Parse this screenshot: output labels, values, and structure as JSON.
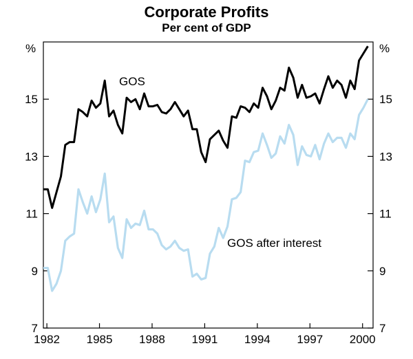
{
  "chart_data": {
    "type": "line",
    "title": "Corporate Profits",
    "subtitle": "Per cent of GDP",
    "ylabel_left": "%",
    "ylabel_right": "%",
    "ylim": [
      7,
      17
    ],
    "yticks": [
      7,
      9,
      11,
      13,
      15
    ],
    "ytick_labels": [
      "7",
      "9",
      "11",
      "13",
      "15"
    ],
    "xlim": [
      1981.8,
      2000.6
    ],
    "xticks": [
      1982,
      1985,
      1988,
      1991,
      1994,
      1997,
      2000
    ],
    "xtick_labels": [
      "1982",
      "1985",
      "1988",
      "1991",
      "1994",
      "1997",
      "2000"
    ],
    "grid": false,
    "annotations": [
      {
        "text": "GOS",
        "series": "GOS"
      },
      {
        "text": "GOS after interest",
        "series": "GOS after interest"
      }
    ],
    "series": [
      {
        "name": "GOS",
        "color": "#000000",
        "x": [
          1981.8,
          1982.05,
          1982.3,
          1982.55,
          1982.8,
          1983.05,
          1983.3,
          1983.55,
          1983.8,
          1984.05,
          1984.3,
          1984.55,
          1984.8,
          1985.05,
          1985.3,
          1985.55,
          1985.8,
          1986.05,
          1986.3,
          1986.55,
          1986.8,
          1987.05,
          1987.3,
          1987.55,
          1987.8,
          1988.05,
          1988.3,
          1988.55,
          1988.8,
          1989.05,
          1989.3,
          1989.55,
          1989.8,
          1990.05,
          1990.3,
          1990.55,
          1990.8,
          1991.05,
          1991.3,
          1991.55,
          1991.8,
          1992.05,
          1992.3,
          1992.55,
          1992.8,
          1993.05,
          1993.3,
          1993.55,
          1993.8,
          1994.05,
          1994.3,
          1994.55,
          1994.8,
          1995.05,
          1995.3,
          1995.55,
          1995.8,
          1996.05,
          1996.3,
          1996.55,
          1996.8,
          1997.05,
          1997.3,
          1997.55,
          1997.8,
          1998.05,
          1998.3,
          1998.55,
          1998.8,
          1999.05,
          1999.3,
          1999.55,
          1999.8,
          2000.05,
          2000.3
        ],
        "values": [
          11.85,
          11.85,
          11.2,
          11.75,
          12.3,
          13.4,
          13.5,
          13.5,
          14.65,
          14.55,
          14.4,
          14.95,
          14.7,
          14.85,
          15.65,
          14.4,
          14.6,
          14.1,
          13.8,
          15.05,
          14.9,
          15.0,
          14.65,
          15.2,
          14.75,
          14.75,
          14.8,
          14.55,
          14.5,
          14.65,
          14.9,
          14.65,
          14.4,
          14.6,
          13.95,
          13.95,
          13.15,
          12.8,
          13.6,
          13.75,
          13.9,
          13.55,
          13.3,
          14.4,
          14.35,
          14.75,
          14.7,
          14.55,
          14.85,
          14.7,
          15.4,
          15.1,
          14.65,
          14.95,
          15.4,
          15.3,
          16.1,
          15.75,
          15.05,
          15.5,
          15.05,
          15.1,
          15.2,
          14.85,
          15.35,
          15.8,
          15.4,
          15.65,
          15.5,
          15.05,
          15.65,
          15.35,
          16.35,
          16.6,
          16.85
        ]
      },
      {
        "name": "GOS after interest",
        "color": "#b8dcf0",
        "x": [
          1981.8,
          1982.05,
          1982.3,
          1982.55,
          1982.8,
          1983.05,
          1983.3,
          1983.55,
          1983.8,
          1984.05,
          1984.3,
          1984.55,
          1984.8,
          1985.05,
          1985.3,
          1985.55,
          1985.8,
          1986.05,
          1986.3,
          1986.55,
          1986.8,
          1987.05,
          1987.3,
          1987.55,
          1987.8,
          1988.05,
          1988.3,
          1988.55,
          1988.8,
          1989.05,
          1989.3,
          1989.55,
          1989.8,
          1990.05,
          1990.3,
          1990.55,
          1990.8,
          1991.05,
          1991.3,
          1991.55,
          1991.8,
          1992.05,
          1992.3,
          1992.55,
          1992.8,
          1993.05,
          1993.3,
          1993.55,
          1993.8,
          1994.05,
          1994.3,
          1994.55,
          1994.8,
          1995.05,
          1995.3,
          1995.55,
          1995.8,
          1996.05,
          1996.3,
          1996.55,
          1996.8,
          1997.05,
          1997.3,
          1997.55,
          1997.8,
          1998.05,
          1998.3,
          1998.55,
          1998.8,
          1999.05,
          1999.3,
          1999.55,
          1999.8,
          2000.05,
          2000.3
        ],
        "values": [
          9.1,
          9.1,
          8.3,
          8.55,
          9.0,
          10.05,
          10.2,
          10.3,
          11.85,
          11.4,
          11.0,
          11.6,
          11.05,
          11.5,
          12.4,
          10.7,
          10.9,
          9.8,
          9.45,
          10.8,
          10.5,
          10.65,
          10.6,
          11.1,
          10.45,
          10.45,
          10.3,
          9.9,
          9.75,
          9.85,
          10.05,
          9.8,
          9.7,
          9.75,
          8.8,
          8.9,
          8.7,
          8.75,
          9.6,
          9.85,
          10.5,
          10.15,
          10.55,
          11.5,
          11.55,
          11.75,
          12.85,
          12.8,
          13.15,
          13.2,
          13.8,
          13.4,
          12.95,
          13.1,
          13.7,
          13.45,
          14.1,
          13.75,
          12.7,
          13.35,
          13.05,
          13.0,
          13.4,
          12.9,
          13.45,
          13.8,
          13.5,
          13.65,
          13.65,
          13.3,
          13.8,
          13.6,
          14.45,
          14.7,
          15.0
        ]
      }
    ]
  }
}
